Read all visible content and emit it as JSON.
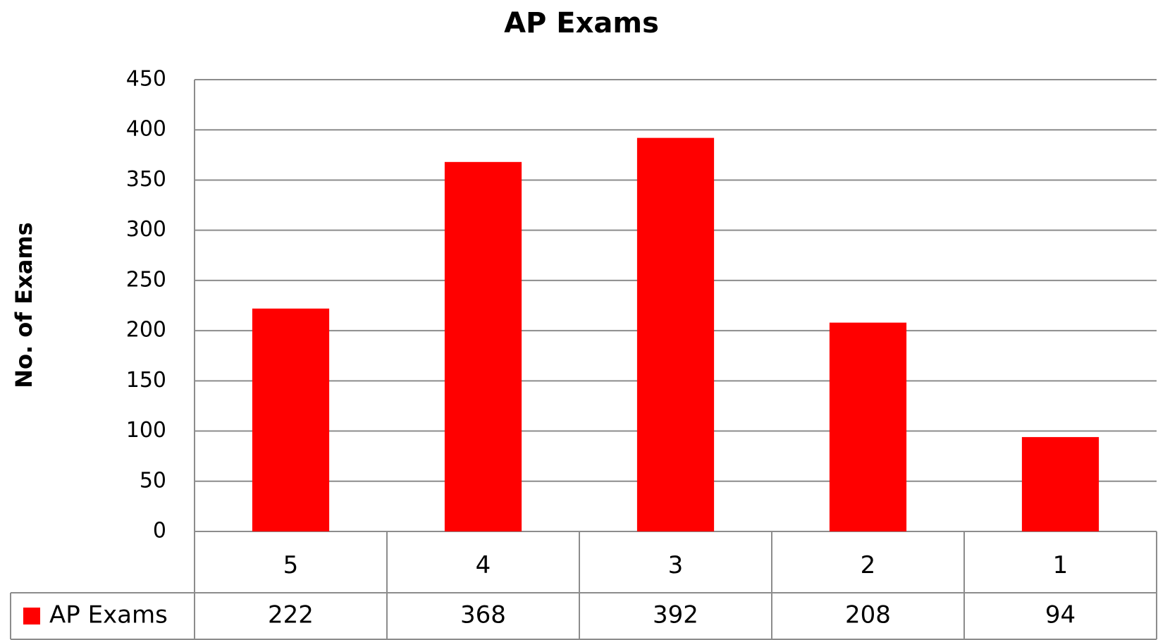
{
  "chart_data": {
    "type": "bar",
    "title": "AP Exams",
    "y_label": "No. of Exams",
    "categories": [
      "5",
      "4",
      "3",
      "2",
      "1"
    ],
    "series": [
      {
        "name": "AP Exams",
        "color": "#ff0000",
        "values": [
          222,
          368,
          392,
          208,
          94
        ]
      }
    ],
    "ylim": [
      0,
      450
    ],
    "yticks": [
      0,
      50,
      100,
      150,
      200,
      250,
      300,
      350,
      400,
      450
    ],
    "grid": true
  }
}
